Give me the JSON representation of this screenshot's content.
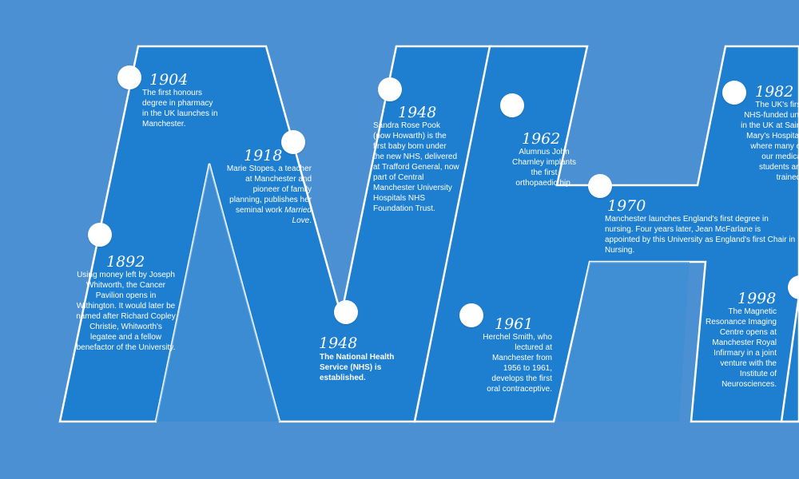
{
  "colors": {
    "background": "#4a90d3",
    "letter_fill": "#1e7fd0",
    "outline": "#ffffff",
    "text": "#ffffff"
  },
  "letters": [
    "N",
    "H",
    "S"
  ],
  "events": [
    {
      "year": "1904",
      "text": "The first honours degree in pharmacy in the UK launches in Manchester."
    },
    {
      "year": "1892",
      "text": "Using money left by Joseph Whitworth, the Cancer Pavilion opens in Withington. It would later be named after Richard Copley Christie, Whitworth's legatee and a fellow benefactor of the University."
    },
    {
      "year": "1918",
      "text": "Marie Stopes, a teacher at Manchester and pioneer of family planning, publishes her seminal work",
      "work": "Married Love",
      "end": "."
    },
    {
      "year": "1948",
      "text": "The National Health Service (NHS) is established."
    },
    {
      "year": "1948",
      "text": "Sandra Rose Pook (now Howarth) is the first baby born under the new NHS, delivered at Trafford General, now part of Central Manchester University Hospitals NHS Foundation Trust."
    },
    {
      "year": "1962",
      "text": "Alumnus John Charnley implants the first orthopaedic hip."
    },
    {
      "year": "1961",
      "text": "Herchel Smith, who lectured at Manchester from 1956 to 1961, develops the first oral contraceptive."
    },
    {
      "year": "1970",
      "text": "Manchester launches England's first degree in nursing. Four years later, Jean McFarlane is appointed by this University as England's first Chair in Nursing."
    },
    {
      "year": "1982",
      "text": "The UK's first NHS-funded unit in the UK at Saint Mary's Hospital, where many of our medical students are trained."
    },
    {
      "year": "1998",
      "text": "The Magnetic Resonance Imaging Centre opens at Manchester Royal Infirmary in a joint venture with the Institute of Neurosciences."
    }
  ]
}
